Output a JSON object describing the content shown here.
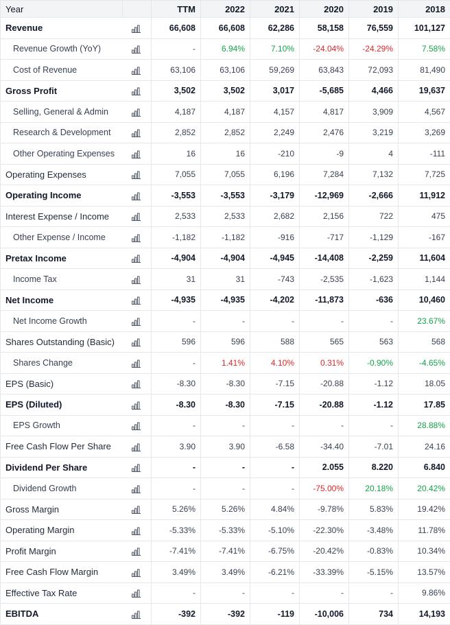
{
  "header": {
    "label": "Year",
    "years": [
      "TTM",
      "2022",
      "2021",
      "2020",
      "2019",
      "2018"
    ]
  },
  "icons": {
    "chart": "bar-chart-icon"
  },
  "colors": {
    "positive": "#16a34a",
    "negative": "#dc2626"
  },
  "rows": [
    {
      "label": "Revenue",
      "style": "bold",
      "values": [
        "66,608",
        "66,608",
        "62,286",
        "58,158",
        "76,559",
        "101,127"
      ],
      "tones": [
        "",
        "",
        "",
        "",
        "",
        ""
      ]
    },
    {
      "label": "Revenue Growth (YoY)",
      "style": "sub",
      "values": [
        "-",
        "6.94%",
        "7.10%",
        "-24.04%",
        "-24.29%",
        "7.58%"
      ],
      "tones": [
        "",
        "pos",
        "pos",
        "neg",
        "neg",
        "pos"
      ]
    },
    {
      "label": "Cost of Revenue",
      "style": "sub",
      "values": [
        "63,106",
        "63,106",
        "59,269",
        "63,843",
        "72,093",
        "81,490"
      ],
      "tones": [
        "",
        "",
        "",
        "",
        "",
        ""
      ]
    },
    {
      "label": "Gross Profit",
      "style": "bold",
      "values": [
        "3,502",
        "3,502",
        "3,017",
        "-5,685",
        "4,466",
        "19,637"
      ],
      "tones": [
        "",
        "",
        "",
        "",
        "",
        ""
      ]
    },
    {
      "label": "Selling, General & Admin",
      "style": "sub",
      "values": [
        "4,187",
        "4,187",
        "4,157",
        "4,817",
        "3,909",
        "4,567"
      ],
      "tones": [
        "",
        "",
        "",
        "",
        "",
        ""
      ]
    },
    {
      "label": "Research & Development",
      "style": "sub",
      "values": [
        "2,852",
        "2,852",
        "2,249",
        "2,476",
        "3,219",
        "3,269"
      ],
      "tones": [
        "",
        "",
        "",
        "",
        "",
        ""
      ]
    },
    {
      "label": "Other Operating Expenses",
      "style": "sub",
      "values": [
        "16",
        "16",
        "-210",
        "-9",
        "4",
        "-111"
      ],
      "tones": [
        "",
        "",
        "",
        "",
        "",
        ""
      ]
    },
    {
      "label": "Operating Expenses",
      "style": "normal",
      "values": [
        "7,055",
        "7,055",
        "6,196",
        "7,284",
        "7,132",
        "7,725"
      ],
      "tones": [
        "",
        "",
        "",
        "",
        "",
        ""
      ]
    },
    {
      "label": "Operating Income",
      "style": "bold",
      "values": [
        "-3,553",
        "-3,553",
        "-3,179",
        "-12,969",
        "-2,666",
        "11,912"
      ],
      "tones": [
        "",
        "",
        "",
        "",
        "",
        ""
      ]
    },
    {
      "label": "Interest Expense / Income",
      "style": "normal",
      "values": [
        "2,533",
        "2,533",
        "2,682",
        "2,156",
        "722",
        "475"
      ],
      "tones": [
        "",
        "",
        "",
        "",
        "",
        ""
      ]
    },
    {
      "label": "Other Expense / Income",
      "style": "sub",
      "values": [
        "-1,182",
        "-1,182",
        "-916",
        "-717",
        "-1,129",
        "-167"
      ],
      "tones": [
        "",
        "",
        "",
        "",
        "",
        ""
      ]
    },
    {
      "label": "Pretax Income",
      "style": "bold",
      "values": [
        "-4,904",
        "-4,904",
        "-4,945",
        "-14,408",
        "-2,259",
        "11,604"
      ],
      "tones": [
        "",
        "",
        "",
        "",
        "",
        ""
      ]
    },
    {
      "label": "Income Tax",
      "style": "sub",
      "values": [
        "31",
        "31",
        "-743",
        "-2,535",
        "-1,623",
        "1,144"
      ],
      "tones": [
        "",
        "",
        "",
        "",
        "",
        ""
      ]
    },
    {
      "label": "Net Income",
      "style": "bold",
      "values": [
        "-4,935",
        "-4,935",
        "-4,202",
        "-11,873",
        "-636",
        "10,460"
      ],
      "tones": [
        "",
        "",
        "",
        "",
        "",
        ""
      ]
    },
    {
      "label": "Net Income Growth",
      "style": "sub",
      "values": [
        "-",
        "-",
        "-",
        "-",
        "-",
        "23.67%"
      ],
      "tones": [
        "",
        "",
        "",
        "",
        "",
        "pos"
      ]
    },
    {
      "label": "Shares Outstanding (Basic)",
      "style": "normal",
      "values": [
        "596",
        "596",
        "588",
        "565",
        "563",
        "568"
      ],
      "tones": [
        "",
        "",
        "",
        "",
        "",
        ""
      ]
    },
    {
      "label": "Shares Change",
      "style": "sub",
      "values": [
        "-",
        "1.41%",
        "4.10%",
        "0.31%",
        "-0.90%",
        "-4.65%"
      ],
      "tones": [
        "",
        "neg",
        "neg",
        "neg",
        "pos",
        "pos"
      ]
    },
    {
      "label": "EPS (Basic)",
      "style": "normal",
      "values": [
        "-8.30",
        "-8.30",
        "-7.15",
        "-20.88",
        "-1.12",
        "18.05"
      ],
      "tones": [
        "",
        "",
        "",
        "",
        "",
        ""
      ]
    },
    {
      "label": "EPS (Diluted)",
      "style": "bold",
      "values": [
        "-8.30",
        "-8.30",
        "-7.15",
        "-20.88",
        "-1.12",
        "17.85"
      ],
      "tones": [
        "",
        "",
        "",
        "",
        "",
        ""
      ]
    },
    {
      "label": "EPS Growth",
      "style": "sub",
      "values": [
        "-",
        "-",
        "-",
        "-",
        "-",
        "28.88%"
      ],
      "tones": [
        "",
        "",
        "",
        "",
        "",
        "pos"
      ]
    },
    {
      "label": "Free Cash Flow Per Share",
      "style": "normal",
      "values": [
        "3.90",
        "3.90",
        "-6.58",
        "-34.40",
        "-7.01",
        "24.16"
      ],
      "tones": [
        "",
        "",
        "",
        "",
        "",
        ""
      ]
    },
    {
      "label": "Dividend Per Share",
      "style": "bold",
      "values": [
        "-",
        "-",
        "-",
        "2.055",
        "8.220",
        "6.840"
      ],
      "tones": [
        "",
        "",
        "",
        "",
        "",
        ""
      ]
    },
    {
      "label": "Dividend Growth",
      "style": "sub",
      "values": [
        "-",
        "-",
        "-",
        "-75.00%",
        "20.18%",
        "20.42%"
      ],
      "tones": [
        "",
        "",
        "",
        "neg",
        "pos",
        "pos"
      ]
    },
    {
      "label": "Gross Margin",
      "style": "normal",
      "values": [
        "5.26%",
        "5.26%",
        "4.84%",
        "-9.78%",
        "5.83%",
        "19.42%"
      ],
      "tones": [
        "",
        "",
        "",
        "",
        "",
        ""
      ]
    },
    {
      "label": "Operating Margin",
      "style": "normal",
      "values": [
        "-5.33%",
        "-5.33%",
        "-5.10%",
        "-22.30%",
        "-3.48%",
        "11.78%"
      ],
      "tones": [
        "",
        "",
        "",
        "",
        "",
        ""
      ]
    },
    {
      "label": "Profit Margin",
      "style": "normal",
      "values": [
        "-7.41%",
        "-7.41%",
        "-6.75%",
        "-20.42%",
        "-0.83%",
        "10.34%"
      ],
      "tones": [
        "",
        "",
        "",
        "",
        "",
        ""
      ]
    },
    {
      "label": "Free Cash Flow Margin",
      "style": "normal",
      "values": [
        "3.49%",
        "3.49%",
        "-6.21%",
        "-33.39%",
        "-5.15%",
        "13.57%"
      ],
      "tones": [
        "",
        "",
        "",
        "",
        "",
        ""
      ]
    },
    {
      "label": "Effective Tax Rate",
      "style": "normal",
      "values": [
        "-",
        "-",
        "-",
        "-",
        "-",
        "9.86%"
      ],
      "tones": [
        "",
        "",
        "",
        "",
        "",
        ""
      ]
    },
    {
      "label": "EBITDA",
      "style": "bold",
      "values": [
        "-392",
        "-392",
        "-119",
        "-10,006",
        "734",
        "14,193"
      ],
      "tones": [
        "",
        "",
        "",
        "",
        "",
        ""
      ]
    }
  ]
}
